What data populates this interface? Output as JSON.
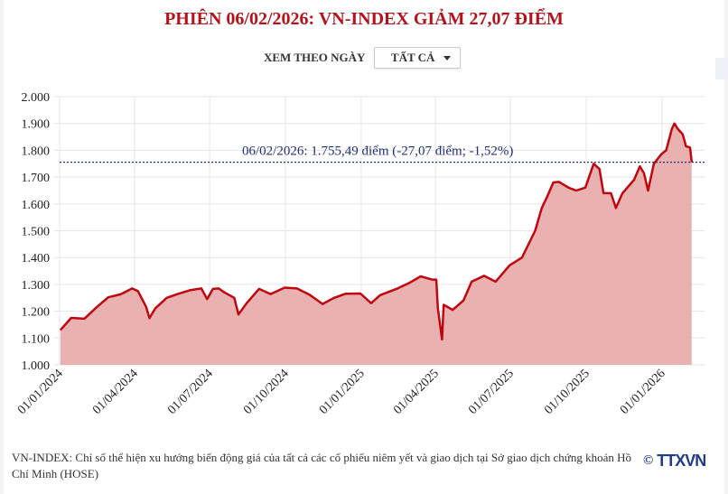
{
  "title": "PHIÊN 06/02/2026: VN-INDEX GIẢM 27,07 ĐIỂM",
  "filter": {
    "label": "XEM THEO NGÀY",
    "selected": "TẤT CẢ"
  },
  "footer": {
    "note": "VN-INDEX: Chỉ số thể hiện xu hướng biến động giá của tất cả các cổ phiếu niêm yết và giao dịch tại Sở giao dịch chứng khoán Hồ Chí Minh (HOSE)",
    "copyright": "©",
    "logo": "TTXVN"
  },
  "colors": {
    "title": "#b5121b",
    "line": "#c0070f",
    "fill": "#e8a8a8",
    "annotation": "#1f2f7a"
  },
  "chart_data": {
    "type": "area",
    "title": "PHIÊN 06/02/2026: VN-INDEX GIẢM 27,07 ĐIỂM",
    "xlabel": "",
    "ylabel": "",
    "ylim": [
      1000,
      2000
    ],
    "yticks": [
      "1.000",
      "1.100",
      "1.200",
      "1.300",
      "1.400",
      "1.500",
      "1.600",
      "1.700",
      "1.800",
      "1.900",
      "2.000"
    ],
    "xticks": [
      "01/01/2024",
      "01/04/2024",
      "01/07/2024",
      "01/10/2024",
      "01/01/2025",
      "01/04/2025",
      "01/07/2025",
      "01/10/2025",
      "01/01/2026"
    ],
    "grid": true,
    "annotation": {
      "text": "06/02/2026: 1.755,49 điểm (-27,07 điểm; -1,52%)",
      "value": 1755.49
    },
    "x": [
      "2024-01-02",
      "2024-01-15",
      "2024-01-31",
      "2024-02-15",
      "2024-02-29",
      "2024-03-15",
      "2024-03-29",
      "2024-04-05",
      "2024-04-15",
      "2024-04-19",
      "2024-04-26",
      "2024-05-10",
      "2024-05-24",
      "2024-06-07",
      "2024-06-21",
      "2024-06-28",
      "2024-07-05",
      "2024-07-12",
      "2024-07-19",
      "2024-07-31",
      "2024-08-05",
      "2024-08-15",
      "2024-08-30",
      "2024-09-13",
      "2024-09-30",
      "2024-10-15",
      "2024-10-31",
      "2024-11-15",
      "2024-11-29",
      "2024-12-13",
      "2024-12-31",
      "2025-01-13",
      "2025-01-24",
      "2025-02-14",
      "2025-02-28",
      "2025-03-14",
      "2025-03-28",
      "2025-04-02",
      "2025-04-04",
      "2025-04-09",
      "2025-04-11",
      "2025-04-22",
      "2025-05-05",
      "2025-05-15",
      "2025-05-30",
      "2025-06-13",
      "2025-06-30",
      "2025-07-15",
      "2025-07-31",
      "2025-08-08",
      "2025-08-15",
      "2025-08-22",
      "2025-08-29",
      "2025-09-10",
      "2025-09-19",
      "2025-09-30",
      "2025-10-10",
      "2025-10-17",
      "2025-10-22",
      "2025-10-31",
      "2025-11-06",
      "2025-11-14",
      "2025-11-28",
      "2025-12-05",
      "2025-12-10",
      "2025-12-15",
      "2025-12-22",
      "2025-12-31",
      "2026-01-06",
      "2026-01-13",
      "2026-01-16",
      "2026-01-20",
      "2026-01-26",
      "2026-01-30",
      "2026-02-04",
      "2026-02-06"
    ],
    "values": [
      1130,
      1175,
      1172,
      1215,
      1252,
      1263,
      1285,
      1275,
      1216,
      1174,
      1210,
      1250,
      1265,
      1278,
      1285,
      1245,
      1283,
      1285,
      1270,
      1250,
      1188,
      1230,
      1283,
      1264,
      1288,
      1285,
      1260,
      1227,
      1250,
      1265,
      1266,
      1230,
      1260,
      1285,
      1305,
      1330,
      1318,
      1318,
      1210,
      1095,
      1224,
      1205,
      1240,
      1310,
      1332,
      1310,
      1371,
      1400,
      1500,
      1585,
      1630,
      1680,
      1682,
      1660,
      1650,
      1661,
      1750,
      1730,
      1640,
      1640,
      1585,
      1640,
      1690,
      1740,
      1715,
      1650,
      1750,
      1785,
      1800,
      1880,
      1900,
      1880,
      1860,
      1815,
      1810,
      1755.49
    ]
  }
}
